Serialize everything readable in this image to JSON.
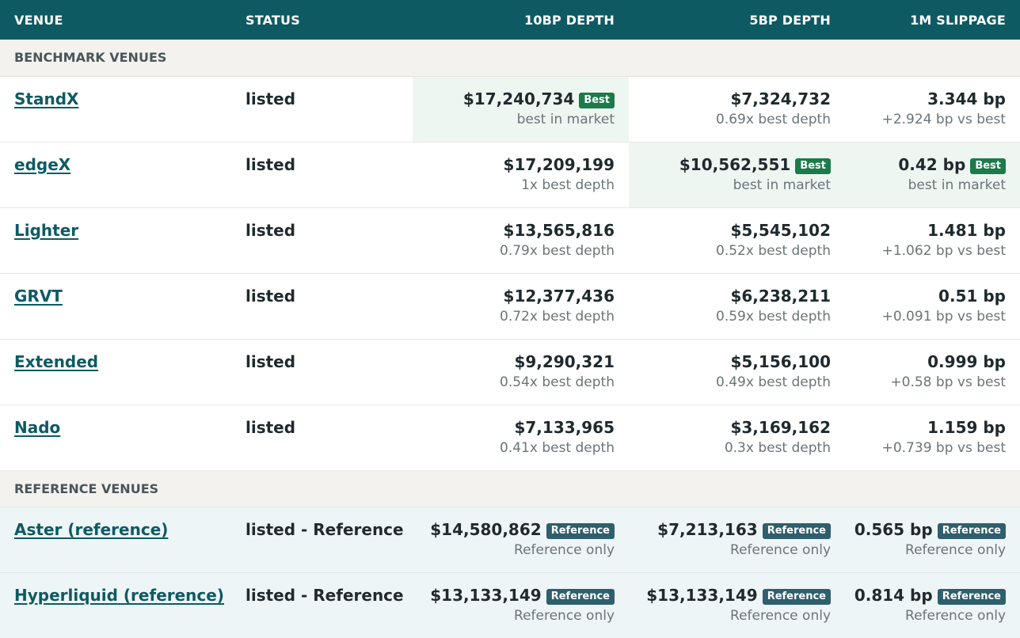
{
  "header": {
    "venue": "VENUE",
    "status": "STATUS",
    "depth10": "10BP DEPTH",
    "depth5": "5BP DEPTH",
    "slippage": "1M SLIPPAGE"
  },
  "sections": {
    "benchmark": "BENCHMARK VENUES",
    "reference": "REFERENCE VENUES"
  },
  "benchmark_rows": [
    {
      "venue": "StandX",
      "status": "listed",
      "d10": {
        "value": "$17,240,734",
        "sub": "best in market",
        "badge": "Best"
      },
      "d5": {
        "value": "$7,324,732",
        "sub": "0.69x best depth"
      },
      "slip": {
        "value": "3.344 bp",
        "sub": "+2.924 bp vs best"
      }
    },
    {
      "venue": "edgeX",
      "status": "listed",
      "d10": {
        "value": "$17,209,199",
        "sub": "1x best depth"
      },
      "d5": {
        "value": "$10,562,551",
        "sub": "best in market",
        "badge": "Best"
      },
      "slip": {
        "value": "0.42 bp",
        "sub": "best in market",
        "badge": "Best"
      }
    },
    {
      "venue": "Lighter",
      "status": "listed",
      "d10": {
        "value": "$13,565,816",
        "sub": "0.79x best depth"
      },
      "d5": {
        "value": "$5,545,102",
        "sub": "0.52x best depth"
      },
      "slip": {
        "value": "1.481 bp",
        "sub": "+1.062 bp vs best"
      }
    },
    {
      "venue": "GRVT",
      "status": "listed",
      "d10": {
        "value": "$12,377,436",
        "sub": "0.72x best depth"
      },
      "d5": {
        "value": "$6,238,211",
        "sub": "0.59x best depth"
      },
      "slip": {
        "value": "0.51 bp",
        "sub": "+0.091 bp vs best"
      }
    },
    {
      "venue": "Extended",
      "status": "listed",
      "d10": {
        "value": "$9,290,321",
        "sub": "0.54x best depth"
      },
      "d5": {
        "value": "$5,156,100",
        "sub": "0.49x best depth"
      },
      "slip": {
        "value": "0.999 bp",
        "sub": "+0.58 bp vs best"
      }
    },
    {
      "venue": "Nado",
      "status": "listed",
      "d10": {
        "value": "$7,133,965",
        "sub": "0.41x best depth"
      },
      "d5": {
        "value": "$3,169,162",
        "sub": "0.3x best depth"
      },
      "slip": {
        "value": "1.159 bp",
        "sub": "+0.739 bp vs best"
      }
    }
  ],
  "reference_rows": [
    {
      "venue": "Aster (reference)",
      "status": "listed - Reference",
      "d10": {
        "value": "$14,580,862",
        "sub": "Reference only",
        "badge": "Reference"
      },
      "d5": {
        "value": "$7,213,163",
        "sub": "Reference only",
        "badge": "Reference"
      },
      "slip": {
        "value": "0.565 bp",
        "sub": "Reference only",
        "badge": "Reference"
      }
    },
    {
      "venue": "Hyperliquid (reference)",
      "status": "listed - Reference",
      "d10": {
        "value": "$13,133,149",
        "sub": "Reference only",
        "badge": "Reference"
      },
      "d5": {
        "value": "$13,133,149",
        "sub": "Reference only",
        "badge": "Reference"
      },
      "slip": {
        "value": "0.814 bp",
        "sub": "Reference only",
        "badge": "Reference"
      }
    }
  ],
  "colors": {
    "header_bg": "#0e5a63",
    "link": "#0e5a63",
    "best_badge": "#1d7a4a",
    "reference_badge": "#2f5f6d",
    "best_cell_bg": "#eef6f1",
    "reference_row_bg": "#eef5f6"
  }
}
